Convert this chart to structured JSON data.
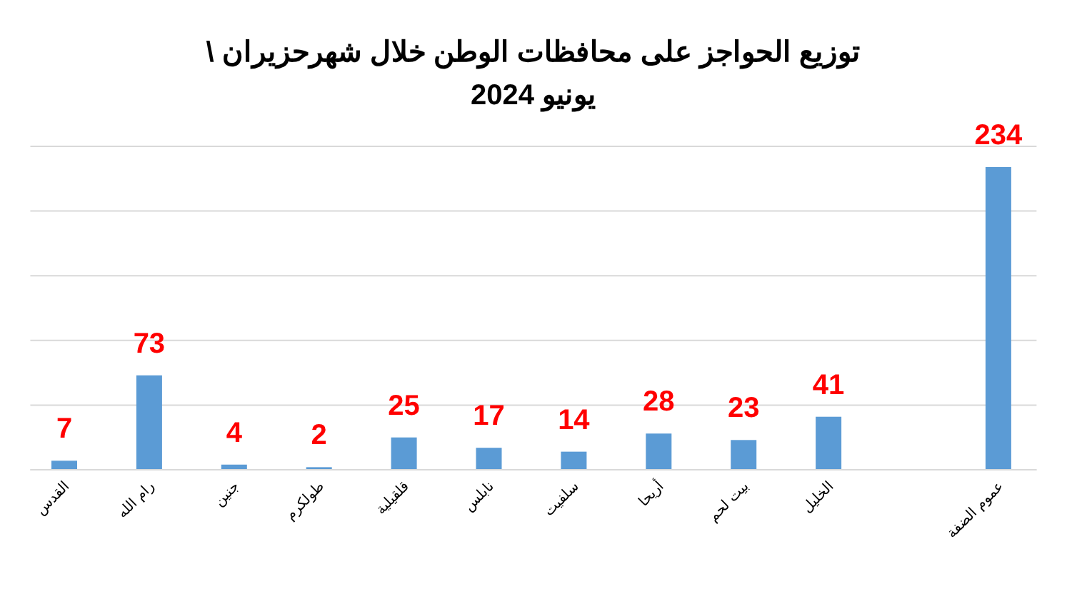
{
  "chart_data": {
    "type": "bar",
    "title": "توزيع  الحواجز على محافظات الوطن خلال شهرحزيران \\ يونيو 2024",
    "categories": [
      "القدس",
      "رام الله",
      "جنين",
      "طولكرم",
      "قلقيلية",
      "نابلس",
      "سلفيت",
      "أريحا",
      "بيت لحم",
      "الخليل",
      null,
      "عموم الضفة"
    ],
    "values": [
      7,
      73,
      4,
      2,
      25,
      17,
      14,
      28,
      23,
      41,
      null,
      234
    ],
    "color": "#5b9bd5",
    "data_labels": true,
    "grid": "y",
    "tick_labels": "x",
    "ylim": [
      0,
      250
    ],
    "yticks": [
      {
        "value": 0,
        "label": null
      },
      {
        "value": 50,
        "label": null
      },
      {
        "value": 100,
        "label": null
      },
      {
        "value": 150,
        "label": null
      },
      {
        "value": 200,
        "label": null
      },
      {
        "value": 250,
        "label": null
      }
    ]
  }
}
